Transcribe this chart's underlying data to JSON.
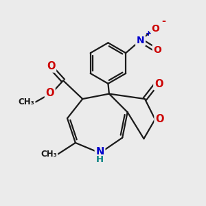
{
  "bg": "#ebebeb",
  "bc": "#1a1a1a",
  "oc": "#cc0000",
  "nc": "#0000cc",
  "hc": "#008080",
  "bw": 1.6,
  "dbo": 0.1,
  "fs": 9.5,
  "figsize": [
    3.0,
    3.0
  ],
  "dpi": 100,
  "xlim": [
    0,
    10
  ],
  "ylim": [
    0,
    10
  ]
}
